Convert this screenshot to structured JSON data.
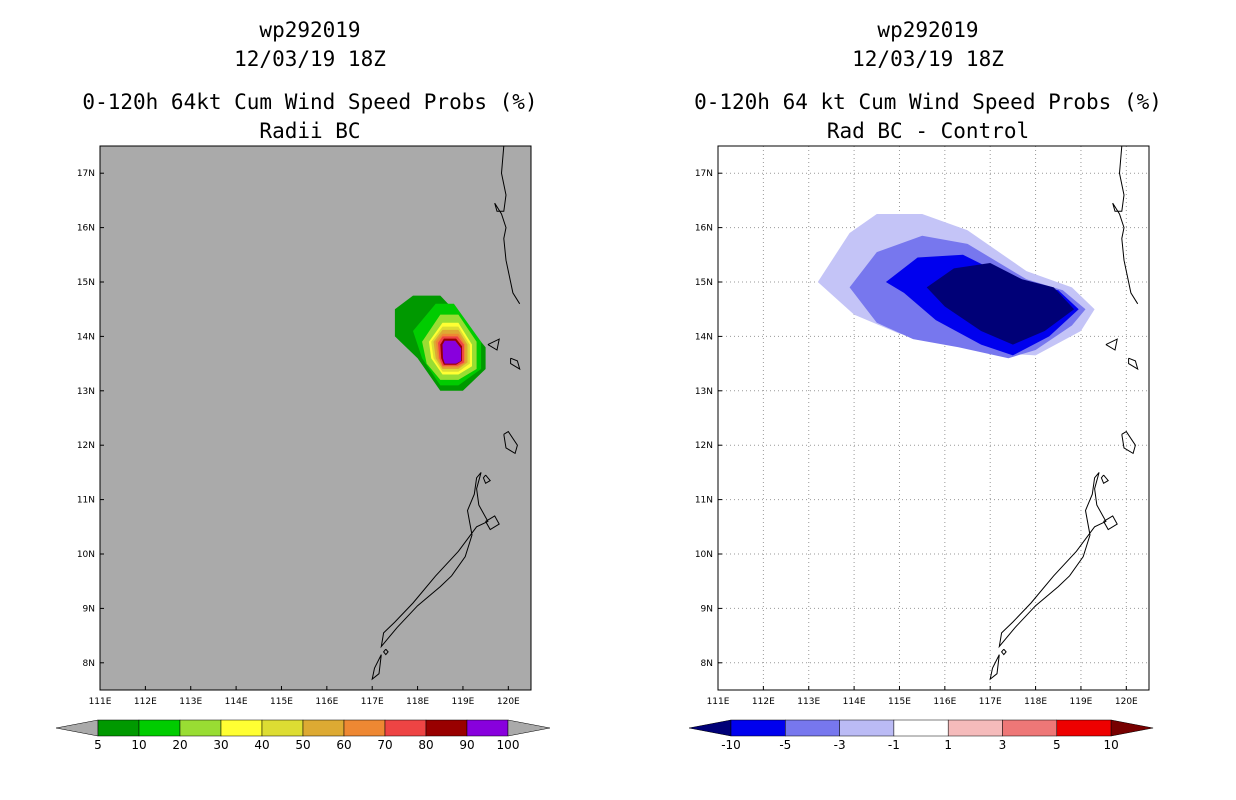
{
  "chart_data": [
    {
      "type": "heatmap",
      "title_lines": [
        "wp292019",
        "12/03/19 18Z",
        "0-120h 64kt Cum Wind Speed Probs (%)",
        "Radii BC"
      ],
      "background": "#aaaaaa",
      "x_ticks": [
        "111E",
        "112E",
        "113E",
        "114E",
        "115E",
        "116E",
        "117E",
        "118E",
        "119E",
        "120E"
      ],
      "y_ticks": [
        "17N",
        "16N",
        "15N",
        "14N",
        "13N",
        "12N",
        "11N",
        "10N",
        "9N",
        "8N"
      ],
      "lon_range": [
        111,
        120.5
      ],
      "lat_range": [
        7.5,
        17.5
      ],
      "gridlines": false,
      "colorbar": {
        "labels": [
          "5",
          "10",
          "20",
          "30",
          "40",
          "50",
          "60",
          "70",
          "80",
          "90",
          "100"
        ],
        "colors": [
          "#009900",
          "#00cc00",
          "#99dd33",
          "#ffff33",
          "#dddd33",
          "#ddaa33",
          "#ee8833",
          "#ee4444",
          "#990000",
          "#8800dd"
        ],
        "end_color": "#aaaaaa"
      },
      "contours": [
        {
          "level": "5-10",
          "color": "#009900",
          "points": [
            [
              117.5,
              14.5
            ],
            [
              117.9,
              14.75
            ],
            [
              118.5,
              14.75
            ],
            [
              118.9,
              14.4
            ],
            [
              119.5,
              13.8
            ],
            [
              119.5,
              13.4
            ],
            [
              119.0,
              13.0
            ],
            [
              118.5,
              13.0
            ],
            [
              118.0,
              13.6
            ],
            [
              117.5,
              14.0
            ]
          ]
        },
        {
          "level": "10-20",
          "color": "#00cc00",
          "points": [
            [
              117.9,
              14.1
            ],
            [
              118.4,
              14.6
            ],
            [
              118.8,
              14.6
            ],
            [
              119.4,
              13.9
            ],
            [
              119.4,
              13.4
            ],
            [
              118.9,
              13.1
            ],
            [
              118.5,
              13.1
            ],
            [
              118.1,
              13.6
            ]
          ]
        },
        {
          "level": "20-30",
          "color": "#99dd33",
          "points": [
            [
              118.1,
              13.9
            ],
            [
              118.5,
              14.4
            ],
            [
              118.9,
              14.4
            ],
            [
              119.3,
              13.9
            ],
            [
              119.3,
              13.4
            ],
            [
              118.9,
              13.2
            ],
            [
              118.5,
              13.2
            ],
            [
              118.2,
              13.5
            ]
          ]
        },
        {
          "level": "30-40",
          "color": "#ffff33",
          "points": [
            [
              118.25,
              13.9
            ],
            [
              118.55,
              14.25
            ],
            [
              118.9,
              14.25
            ],
            [
              119.2,
              13.85
            ],
            [
              119.2,
              13.45
            ],
            [
              118.9,
              13.3
            ],
            [
              118.55,
              13.3
            ],
            [
              118.3,
              13.6
            ]
          ]
        },
        {
          "level": "40-50",
          "color": "#dddd33",
          "points": [
            [
              118.3,
              13.9
            ],
            [
              118.55,
              14.18
            ],
            [
              118.9,
              14.18
            ],
            [
              119.15,
              13.85
            ],
            [
              119.15,
              13.5
            ],
            [
              118.9,
              13.35
            ],
            [
              118.55,
              13.35
            ],
            [
              118.35,
              13.6
            ]
          ]
        },
        {
          "level": "50-60",
          "color": "#ddaa33",
          "points": [
            [
              118.35,
              13.9
            ],
            [
              118.55,
              14.12
            ],
            [
              118.9,
              14.12
            ],
            [
              119.1,
              13.85
            ],
            [
              119.1,
              13.52
            ],
            [
              118.9,
              13.4
            ],
            [
              118.55,
              13.4
            ],
            [
              118.4,
              13.6
            ]
          ]
        },
        {
          "level": "60-70",
          "color": "#ee8833",
          "points": [
            [
              118.4,
              13.9
            ],
            [
              118.55,
              14.05
            ],
            [
              118.9,
              14.05
            ],
            [
              119.05,
              13.85
            ],
            [
              119.05,
              13.52
            ],
            [
              118.9,
              13.43
            ],
            [
              118.55,
              13.43
            ],
            [
              118.45,
              13.6
            ]
          ]
        },
        {
          "level": "70-80",
          "color": "#ee4444",
          "points": [
            [
              118.45,
              13.88
            ],
            [
              118.55,
              14.0
            ],
            [
              118.88,
              14.0
            ],
            [
              119.02,
              13.85
            ],
            [
              119.02,
              13.52
            ],
            [
              118.88,
              13.46
            ],
            [
              118.55,
              13.46
            ],
            [
              118.48,
              13.6
            ]
          ]
        },
        {
          "level": "80-90",
          "color": "#990000",
          "points": [
            [
              118.5,
              13.85
            ],
            [
              118.58,
              13.96
            ],
            [
              118.85,
              13.96
            ],
            [
              118.98,
              13.82
            ],
            [
              118.98,
              13.55
            ],
            [
              118.85,
              13.48
            ],
            [
              118.58,
              13.48
            ],
            [
              118.52,
              13.6
            ]
          ]
        },
        {
          "level": "90-100",
          "color": "#8800dd",
          "points": [
            [
              118.55,
              13.85
            ],
            [
              118.6,
              13.92
            ],
            [
              118.83,
              13.92
            ],
            [
              118.96,
              13.78
            ],
            [
              118.96,
              13.55
            ],
            [
              118.85,
              13.5
            ],
            [
              118.6,
              13.5
            ],
            [
              118.56,
              13.6
            ]
          ]
        }
      ]
    },
    {
      "type": "heatmap",
      "title_lines": [
        "wp292019",
        "12/03/19 18Z",
        "0-120h 64 kt Cum Wind Speed Probs (%)",
        "Rad BC - Control"
      ],
      "background": "#ffffff",
      "x_ticks": [
        "111E",
        "112E",
        "113E",
        "114E",
        "115E",
        "116E",
        "117E",
        "118E",
        "119E",
        "120E"
      ],
      "y_ticks": [
        "17N",
        "16N",
        "15N",
        "14N",
        "13N",
        "12N",
        "11N",
        "10N",
        "9N",
        "8N"
      ],
      "lon_range": [
        111,
        120.5
      ],
      "lat_range": [
        7.5,
        17.5
      ],
      "gridlines": true,
      "colorbar": {
        "labels": [
          "-10",
          "-5",
          "-3",
          "-1",
          "1",
          "3",
          "5",
          "10"
        ],
        "colors": [
          "#0000ee",
          "#7777ee",
          "#bbbbf5",
          "#ffffff",
          "#f5bbbb",
          "#ee7777",
          "#ee0000"
        ],
        "left_end_color": "#000077",
        "right_end_color": "#770000"
      },
      "contours": [
        {
          "level": "-3 to -1",
          "color": "#c4c4f7",
          "points": [
            [
              113.2,
              15.0
            ],
            [
              113.9,
              15.9
            ],
            [
              114.5,
              16.25
            ],
            [
              115.5,
              16.25
            ],
            [
              116.5,
              15.95
            ],
            [
              117.8,
              15.2
            ],
            [
              118.8,
              14.9
            ],
            [
              119.3,
              14.5
            ],
            [
              119.0,
              14.1
            ],
            [
              118.0,
              13.65
            ],
            [
              117.0,
              13.7
            ],
            [
              116.0,
              13.9
            ],
            [
              115.0,
              14.05
            ],
            [
              114.0,
              14.4
            ]
          ]
        },
        {
          "level": "-5 to -3",
          "color": "#7777ee",
          "points": [
            [
              113.9,
              14.9
            ],
            [
              114.5,
              15.55
            ],
            [
              115.5,
              15.85
            ],
            [
              116.5,
              15.7
            ],
            [
              117.8,
              15.05
            ],
            [
              118.6,
              14.85
            ],
            [
              119.1,
              14.5
            ],
            [
              118.8,
              14.2
            ],
            [
              118.0,
              13.75
            ],
            [
              117.4,
              13.6
            ],
            [
              116.3,
              13.8
            ],
            [
              115.3,
              13.95
            ],
            [
              114.5,
              14.25
            ]
          ]
        },
        {
          "level": "-10 to -5",
          "color": "#0000ee",
          "points": [
            [
              114.7,
              15.0
            ],
            [
              115.4,
              15.45
            ],
            [
              116.4,
              15.5
            ],
            [
              117.6,
              15.0
            ],
            [
              118.5,
              14.85
            ],
            [
              118.95,
              14.5
            ],
            [
              118.3,
              14.0
            ],
            [
              117.5,
              13.65
            ],
            [
              116.8,
              13.85
            ],
            [
              115.8,
              14.3
            ],
            [
              115.1,
              14.8
            ]
          ]
        },
        {
          "level": "< -10",
          "color": "#000077",
          "points": [
            [
              115.6,
              14.9
            ],
            [
              116.2,
              15.25
            ],
            [
              117.0,
              15.35
            ],
            [
              117.7,
              15.05
            ],
            [
              118.4,
              14.9
            ],
            [
              118.85,
              14.5
            ],
            [
              118.2,
              14.1
            ],
            [
              117.5,
              13.85
            ],
            [
              116.8,
              14.1
            ],
            [
              116.0,
              14.55
            ]
          ]
        }
      ]
    }
  ]
}
